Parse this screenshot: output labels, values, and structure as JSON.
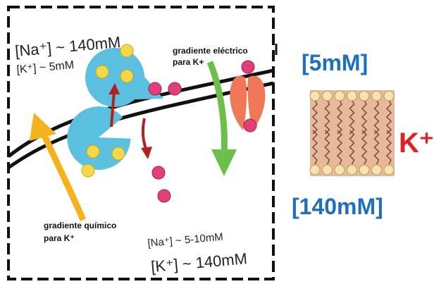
{
  "diagram": {
    "inside_box": {
      "na_outside": "[Na⁺] ~ 140mM",
      "k_outside": "[K⁺] ~ 5mM",
      "electric_gradient": [
        "gradiente eléctrico",
        "para K+"
      ],
      "chemical_gradient": [
        "gradiente químico",
        "para K⁺"
      ],
      "na_inside": "[Na⁺] ~ 5-10mM",
      "k_inside": "[K⁺] ~ 140mM"
    },
    "right_panel": {
      "outside_concentration": "[5mM]",
      "inside_concentration": "[140mM]",
      "ion": "K⁺"
    }
  }
}
